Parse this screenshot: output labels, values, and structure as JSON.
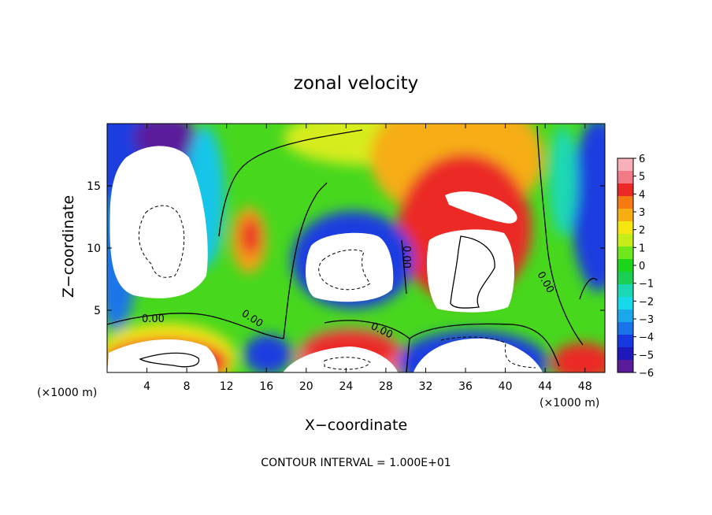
{
  "chart_data": {
    "type": "heatmap",
    "title": "zonal velocity",
    "xlabel": "X−coordinate",
    "ylabel": "Z−coordinate",
    "x_unit": "(×1000 m)",
    "z_unit": "(×1000 m)",
    "xlim": [
      0,
      50
    ],
    "ylim": [
      0,
      20
    ],
    "x_ticks": [
      "4",
      "8",
      "12",
      "16",
      "20",
      "24",
      "28",
      "32",
      "36",
      "40",
      "44",
      "48"
    ],
    "y_ticks": [
      "5",
      "10",
      "15"
    ],
    "colorbar": {
      "ticks": [
        "6",
        "5",
        "4",
        "3",
        "2",
        "1",
        "0",
        "−1",
        "−2",
        "−3",
        "−4",
        "−5",
        "−6"
      ],
      "range": [
        -6,
        6
      ],
      "colors": [
        "#f7b0b8",
        "#f27a86",
        "#eb2a28",
        "#f57a12",
        "#f6ad12",
        "#f5e612",
        "#c8ec1a",
        "#6fe81b",
        "#1bd618",
        "#1bcf55",
        "#1ad8b3",
        "#18d9e9",
        "#1aa8ea",
        "#1a74e9",
        "#1737e0",
        "#1e17b9",
        "#5a1b9b"
      ]
    },
    "contour_labels": [
      "0.00",
      "0.00",
      "0.00",
      "0.00",
      "0.00"
    ],
    "footer": "CONTOUR INTERVAL = 1.000E+01",
    "grid": false,
    "legend": "colorbar-right"
  }
}
